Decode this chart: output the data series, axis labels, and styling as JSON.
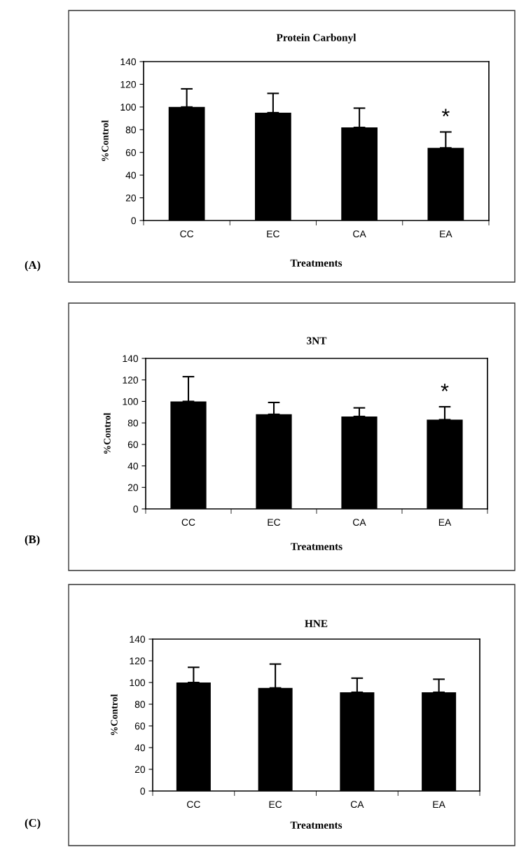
{
  "chart_data": [
    {
      "type": "bar",
      "title": "Protein Carbonyl",
      "xlabel": "Treatments",
      "ylabel": "%Control",
      "categories": [
        "CC",
        "EC",
        "CA",
        "EA"
      ],
      "values": [
        100,
        95,
        82,
        64
      ],
      "errors": [
        [
          100,
          116
        ],
        [
          95,
          112
        ],
        [
          82,
          99
        ],
        [
          64,
          78
        ]
      ],
      "color": "#000000",
      "ylim": [
        0,
        140
      ],
      "yticks": [
        0,
        20,
        40,
        60,
        80,
        100,
        120,
        140
      ],
      "grid": false,
      "legend": false,
      "annotations": [
        "*",
        "(A)"
      ]
    },
    {
      "type": "bar",
      "title": "3NT",
      "xlabel": "Treatments",
      "ylabel": "%Control",
      "categories": [
        "CC",
        "EC",
        "CA",
        "EA"
      ],
      "values": [
        100,
        88,
        86,
        83
      ],
      "errors": [
        [
          100,
          123
        ],
        [
          88,
          99
        ],
        [
          86,
          94
        ],
        [
          83,
          95
        ]
      ],
      "color": "#000000",
      "ylim": [
        0,
        140
      ],
      "yticks": [
        0,
        20,
        40,
        60,
        80,
        100,
        120,
        140
      ],
      "grid": false,
      "legend": false,
      "annotations": [
        "*",
        "(B)"
      ]
    },
    {
      "type": "bar",
      "title": "HNE",
      "xlabel": "Treatments",
      "ylabel": "%Control",
      "categories": [
        "CC",
        "EC",
        "CA",
        "EA"
      ],
      "values": [
        100,
        95,
        91,
        91
      ],
      "errors": [
        [
          100,
          114
        ],
        [
          95,
          117
        ],
        [
          91,
          104
        ],
        [
          91,
          103
        ]
      ],
      "color": "#000000",
      "ylim": [
        0,
        140
      ],
      "yticks": [
        0,
        20,
        40,
        60,
        80,
        100,
        120,
        140
      ],
      "grid": false,
      "legend": false,
      "annotations": [
        "(C)"
      ]
    }
  ]
}
